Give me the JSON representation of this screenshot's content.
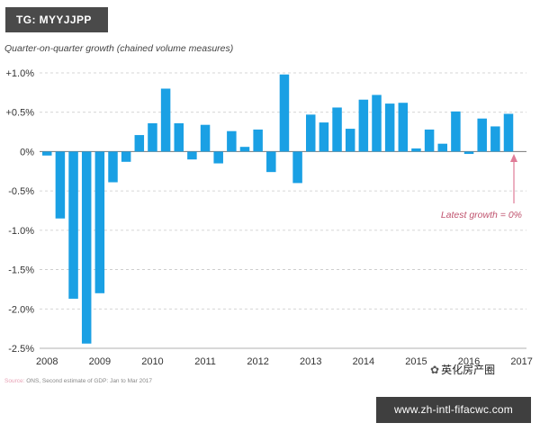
{
  "overlay": {
    "tag": "TG: MYYJJPP",
    "source_label": "Source:",
    "source_text": "ONS, Second estimate of GDP: Jan to Mar 2017",
    "wechat_label": "英化房产圈",
    "url": "www.zh-intl-fifacwc.com"
  },
  "chart_data": {
    "type": "bar",
    "title": "",
    "subtitle": "Quarter-on-quarter growth (chained volume measures)",
    "xlabel": "",
    "ylabel": "",
    "unit": "%",
    "ylim": [
      -2.5,
      1.0
    ],
    "yticks": [
      1.0,
      0.5,
      0,
      -0.5,
      -1.0,
      -1.5,
      -2.0,
      -2.5
    ],
    "ytick_labels": [
      "+1.0%",
      "+0.5%",
      "0%",
      "-0.5%",
      "-1.0%",
      "-1.5%",
      "-2.0%",
      "-2.5%"
    ],
    "year_labels": [
      "2008",
      "2009",
      "2010",
      "2011",
      "2012",
      "2013",
      "2014",
      "2015",
      "2016",
      "2017"
    ],
    "bar_color": "#1aa0e4",
    "grid": true,
    "series": [
      {
        "name": "Quarter-on-quarter GDP growth",
        "values": [
          -0.05,
          -0.85,
          -1.87,
          -2.44,
          -1.8,
          -0.39,
          -0.13,
          0.21,
          0.36,
          0.8,
          0.36,
          -0.1,
          0.34,
          -0.15,
          0.26,
          0.06,
          0.28,
          -0.26,
          0.98,
          -0.4,
          0.47,
          0.37,
          0.56,
          0.29,
          0.66,
          0.72,
          0.61,
          0.62,
          0.04,
          0.28,
          0.1,
          0.51,
          -0.03,
          0.42,
          0.32,
          0.48
        ]
      }
    ],
    "annotation": {
      "text": "Latest growth = 0%",
      "arrow_color": "#e07c97"
    }
  }
}
